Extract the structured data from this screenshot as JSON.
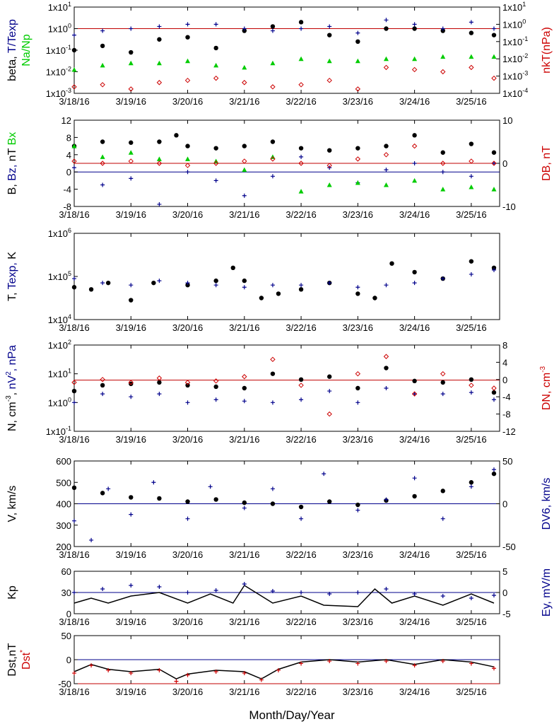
{
  "xlabel": "Month/Day/Year",
  "x_ticks": [
    "3/18/16",
    "3/19/16",
    "3/20/16",
    "3/21/16",
    "3/22/16",
    "3/23/16",
    "3/24/16",
    "3/25/16"
  ],
  "colors": {
    "black": "#000000",
    "blue": "#00008b",
    "red": "#cc0000",
    "green": "#00cc00",
    "ref_red": "#c00000",
    "ref_blue": "#00008b"
  },
  "chart_data": [
    {
      "type": "scatter",
      "scale": "log",
      "ylabel_parts": [
        {
          "text": "beta, ",
          "color": "black"
        },
        {
          "text": "T/Texp",
          "color": "blue"
        }
      ],
      "ylabel2_parts": [
        {
          "text": "nkT(nPa)",
          "color": "red"
        }
      ],
      "ylabel3_parts": [
        {
          "text": "Na/Np",
          "color": "green"
        }
      ],
      "left_ticks": [
        "1x10-3",
        "1x10-2",
        "1x10-1",
        "1x100",
        "1x101"
      ],
      "right_ticks": [
        "1x10-4",
        "1x10-3",
        "1x10-2",
        "1x10-1",
        "1x100",
        "1x101"
      ],
      "ylim": [
        -3,
        1
      ],
      "ref_lines": [
        {
          "y": 0,
          "color": "ref_red"
        }
      ],
      "series": [
        {
          "color": "black",
          "marker": "dot",
          "x": [
            0.0,
            0.5,
            1.0,
            1.5,
            2.0,
            2.5,
            3.0,
            3.5,
            4.0,
            4.5,
            5.0,
            5.5,
            6.0,
            6.5,
            7.0,
            7.4
          ],
          "y": [
            -1.0,
            -0.8,
            -1.1,
            -0.5,
            -0.4,
            -0.9,
            -0.1,
            0.1,
            0.3,
            -0.3,
            -0.6,
            0.0,
            0.0,
            -0.1,
            -0.2,
            -0.3
          ]
        },
        {
          "color": "blue",
          "marker": "plus",
          "x": [
            0.0,
            0.5,
            1.0,
            1.5,
            2.0,
            2.5,
            3.0,
            3.5,
            4.0,
            4.5,
            5.0,
            5.5,
            6.0,
            6.5,
            7.0,
            7.4
          ],
          "y": [
            -0.3,
            -0.1,
            0.0,
            0.1,
            0.2,
            0.2,
            0.0,
            -0.1,
            0.0,
            0.1,
            -0.2,
            0.4,
            0.2,
            0.0,
            0.3,
            0.0
          ]
        },
        {
          "color": "red",
          "marker": "diamond",
          "x": [
            0.0,
            0.5,
            1.0,
            1.5,
            2.0,
            2.5,
            3.0,
            3.5,
            4.0,
            4.5,
            5.0,
            5.5,
            6.0,
            6.5,
            7.0,
            7.4
          ],
          "y": [
            -2.7,
            -2.6,
            -2.8,
            -2.5,
            -2.4,
            -2.3,
            -2.5,
            -2.7,
            -2.6,
            -2.4,
            -2.8,
            -1.8,
            -1.9,
            -2.0,
            -1.8,
            -2.3
          ]
        },
        {
          "color": "green",
          "marker": "triangle",
          "x": [
            0.0,
            0.5,
            1.0,
            1.5,
            2.0,
            2.5,
            3.0,
            3.5,
            4.0,
            4.5,
            5.0,
            5.5,
            6.0,
            6.5,
            7.0,
            7.4
          ],
          "y": [
            -1.9,
            -1.7,
            -1.6,
            -1.6,
            -1.5,
            -1.7,
            -1.8,
            -1.6,
            -1.4,
            -1.5,
            -1.5,
            -1.4,
            -1.4,
            -1.3,
            -1.3,
            -1.3
          ]
        }
      ]
    },
    {
      "type": "scatter",
      "scale": "linear",
      "ylabel_parts": [
        {
          "text": "B, ",
          "color": "black"
        },
        {
          "text": "Bz, ",
          "color": "blue"
        },
        {
          "text": "nT ",
          "color": "black"
        },
        {
          "text": "Bx",
          "color": "green"
        }
      ],
      "ylabel2_parts": [
        {
          "text": "DB, nT",
          "color": "red"
        }
      ],
      "left_ticks": [
        "-8",
        "-4",
        "0",
        "4",
        "8",
        "12"
      ],
      "right_ticks": [
        "-10",
        "0",
        "10"
      ],
      "ylim": [
        -8,
        12
      ],
      "ref_lines": [
        {
          "y": 0,
          "color": "ref_blue"
        },
        {
          "y": 2,
          "color": "ref_red"
        }
      ],
      "series": [
        {
          "color": "black",
          "marker": "dot",
          "x": [
            0.0,
            0.5,
            1.0,
            1.5,
            1.8,
            2.0,
            2.5,
            3.0,
            3.5,
            4.0,
            4.5,
            5.0,
            5.5,
            6.0,
            6.5,
            7.0,
            7.4
          ],
          "y": [
            6.0,
            7.0,
            6.8,
            7.0,
            8.5,
            6.0,
            5.5,
            6.0,
            7.0,
            5.5,
            5.0,
            5.5,
            6.0,
            8.5,
            4.5,
            6.5,
            4.5
          ]
        },
        {
          "color": "blue",
          "marker": "plus",
          "x": [
            0.0,
            0.5,
            1.0,
            1.5,
            2.0,
            2.5,
            3.0,
            3.5,
            4.0,
            4.5,
            5.0,
            5.5,
            6.0,
            6.5,
            7.0,
            7.4
          ],
          "y": [
            1.0,
            -3.0,
            -1.5,
            -7.5,
            0.0,
            -2.0,
            -5.5,
            -1.0,
            3.5,
            1.0,
            -2.5,
            0.5,
            2.0,
            0.0,
            -1.0,
            2.0
          ]
        },
        {
          "color": "green",
          "marker": "triangle",
          "x": [
            0.0,
            0.5,
            1.0,
            1.5,
            2.0,
            2.5,
            3.0,
            3.5,
            4.0,
            4.5,
            5.0,
            5.5,
            6.0,
            6.5,
            7.0,
            7.4
          ],
          "y": [
            6.0,
            3.5,
            4.5,
            3.0,
            3.0,
            2.5,
            0.5,
            3.5,
            -4.5,
            -3.0,
            -2.5,
            -3.0,
            -2.0,
            -4.0,
            -3.5,
            -4.0
          ]
        },
        {
          "color": "red",
          "marker": "diamond",
          "x": [
            0.0,
            0.5,
            1.0,
            1.5,
            2.0,
            2.5,
            3.0,
            3.5,
            4.0,
            4.5,
            5.0,
            5.5,
            6.0,
            6.5,
            7.0,
            7.4
          ],
          "y": [
            2.5,
            2.0,
            2.5,
            2.0,
            1.5,
            2.0,
            2.5,
            3.0,
            2.0,
            1.5,
            3.0,
            4.0,
            6.0,
            2.0,
            2.5,
            2.0
          ]
        }
      ]
    },
    {
      "type": "scatter",
      "scale": "log",
      "ylabel_parts": [
        {
          "text": "T, ",
          "color": "black"
        },
        {
          "text": "Texp, ",
          "color": "blue"
        },
        {
          "text": "K",
          "color": "black"
        }
      ],
      "left_ticks": [
        "1x104",
        "1x105",
        "1x106"
      ],
      "ylim": [
        4,
        6
      ],
      "ref_lines": [],
      "series": [
        {
          "color": "black",
          "marker": "dot",
          "x": [
            0.0,
            0.3,
            0.6,
            1.0,
            1.4,
            2.0,
            2.5,
            2.8,
            3.0,
            3.3,
            3.6,
            4.0,
            4.5,
            5.0,
            5.3,
            5.6,
            6.0,
            6.5,
            7.0,
            7.4
          ],
          "y": [
            4.75,
            4.7,
            4.85,
            4.45,
            4.85,
            4.8,
            4.9,
            5.2,
            4.9,
            4.5,
            4.6,
            4.7,
            4.85,
            4.6,
            4.5,
            5.3,
            5.1,
            4.95,
            5.35,
            5.2
          ]
        },
        {
          "color": "blue",
          "marker": "plus",
          "x": [
            0.0,
            0.5,
            1.0,
            1.5,
            2.0,
            2.5,
            3.0,
            3.5,
            4.0,
            4.5,
            5.0,
            5.5,
            6.0,
            6.5,
            7.0,
            7.4
          ],
          "y": [
            4.95,
            4.85,
            4.8,
            4.9,
            4.85,
            4.8,
            4.75,
            4.8,
            4.8,
            4.85,
            4.75,
            4.8,
            4.85,
            4.95,
            5.05,
            5.15
          ]
        }
      ]
    },
    {
      "type": "scatter",
      "scale": "log",
      "ylabel_parts": [
        {
          "text": "N, cm",
          "color": "black"
        },
        {
          "text": "-3",
          "color": "black",
          "sup": true
        },
        {
          "text": ", ",
          "color": "black"
        },
        {
          "text": "nV",
          "color": "blue"
        },
        {
          "text": "2",
          "color": "blue",
          "sup": true
        },
        {
          "text": ", nPa",
          "color": "blue"
        }
      ],
      "ylabel2_parts": [
        {
          "text": "DN, cm",
          "color": "red"
        },
        {
          "text": "-3",
          "color": "red",
          "sup": true
        }
      ],
      "left_ticks": [
        "1x10-1",
        "1x100",
        "1x101",
        "1x102"
      ],
      "right_ticks": [
        "-12",
        "-8",
        "-4",
        "0",
        "4",
        "8"
      ],
      "ylim": [
        -1,
        2
      ],
      "ref_lines": [
        {
          "y": 0.78,
          "color": "ref_red"
        }
      ],
      "series": [
        {
          "color": "black",
          "marker": "dot",
          "x": [
            0.0,
            0.5,
            1.0,
            1.5,
            2.0,
            2.5,
            3.0,
            3.5,
            4.0,
            4.5,
            5.0,
            5.5,
            6.0,
            6.5,
            7.0,
            7.4
          ],
          "y": [
            0.4,
            0.6,
            0.65,
            0.7,
            0.6,
            0.55,
            0.5,
            1.0,
            0.8,
            0.9,
            0.5,
            1.2,
            0.75,
            0.7,
            0.8,
            0.35
          ]
        },
        {
          "color": "blue",
          "marker": "plus",
          "x": [
            0.0,
            0.5,
            1.0,
            1.5,
            2.0,
            2.5,
            3.0,
            3.5,
            4.0,
            4.5,
            5.0,
            5.5,
            6.0,
            6.5,
            7.0,
            7.4
          ],
          "y": [
            0.0,
            0.3,
            0.2,
            0.3,
            0.0,
            0.1,
            0.05,
            0.0,
            0.1,
            0.4,
            0.0,
            0.5,
            0.3,
            0.3,
            0.35,
            0.1
          ]
        },
        {
          "color": "red",
          "marker": "diamond",
          "x": [
            0.0,
            0.5,
            1.0,
            1.5,
            2.0,
            2.5,
            3.0,
            3.5,
            4.0,
            4.5,
            5.0,
            5.5,
            6.0,
            6.5,
            7.0,
            7.4
          ],
          "y": [
            0.7,
            0.8,
            0.7,
            0.85,
            0.7,
            0.75,
            0.9,
            1.5,
            0.6,
            -0.4,
            1.0,
            1.6,
            0.3,
            1.0,
            0.6,
            0.5
          ]
        }
      ]
    },
    {
      "type": "scatter",
      "scale": "linear",
      "ylabel_parts": [
        {
          "text": "V, km/s",
          "color": "black"
        }
      ],
      "ylabel2_parts": [
        {
          "text": "DV6, km/s",
          "color": "blue"
        }
      ],
      "left_ticks": [
        "200",
        "300",
        "400",
        "500",
        "600"
      ],
      "right_ticks": [
        "-50",
        "0",
        "50"
      ],
      "ylim": [
        200,
        600
      ],
      "ref_lines": [
        {
          "y": 400,
          "color": "ref_blue"
        }
      ],
      "series": [
        {
          "color": "black",
          "marker": "dot",
          "x": [
            0.0,
            0.5,
            1.0,
            1.5,
            2.0,
            2.5,
            3.0,
            3.5,
            4.0,
            4.5,
            5.0,
            5.5,
            6.0,
            6.5,
            7.0,
            7.4
          ],
          "y": [
            475,
            450,
            430,
            425,
            410,
            420,
            405,
            400,
            385,
            410,
            395,
            415,
            435,
            460,
            500,
            540
          ]
        },
        {
          "color": "blue",
          "marker": "plus",
          "x": [
            0.0,
            0.3,
            0.6,
            1.0,
            1.4,
            2.0,
            2.4,
            3.0,
            3.5,
            4.0,
            4.4,
            5.0,
            5.5,
            6.0,
            6.5,
            7.0,
            7.4
          ],
          "y": [
            320,
            230,
            470,
            350,
            500,
            330,
            480,
            380,
            470,
            330,
            540,
            370,
            420,
            520,
            330,
            480,
            560
          ]
        }
      ]
    },
    {
      "type": "line",
      "scale": "linear",
      "ylabel_parts": [
        {
          "text": "Kp",
          "color": "black"
        }
      ],
      "ylabel2_parts": [
        {
          "text": "Ey,  mV/m",
          "color": "blue"
        }
      ],
      "left_ticks": [
        "0",
        "30",
        "60"
      ],
      "right_ticks": [
        "-5",
        "0",
        "5"
      ],
      "ylim": [
        0,
        60
      ],
      "ref_lines": [
        {
          "y": 30,
          "color": "ref_blue"
        }
      ],
      "series": [
        {
          "color": "black",
          "marker": "line",
          "x": [
            0.0,
            0.3,
            0.6,
            1.0,
            1.5,
            2.0,
            2.4,
            2.8,
            3.0,
            3.5,
            4.0,
            4.4,
            5.0,
            5.3,
            5.6,
            6.0,
            6.5,
            7.0,
            7.4
          ],
          "y": [
            15,
            22,
            15,
            25,
            30,
            15,
            28,
            15,
            40,
            15,
            25,
            12,
            10,
            35,
            15,
            25,
            12,
            28,
            15
          ]
        },
        {
          "color": "blue",
          "marker": "plus",
          "x": [
            0.0,
            0.5,
            1.0,
            1.5,
            2.0,
            2.5,
            3.0,
            3.5,
            4.0,
            4.5,
            5.0,
            5.5,
            6.0,
            6.5,
            7.0,
            7.4
          ],
          "y": [
            30,
            35,
            40,
            38,
            30,
            33,
            42,
            32,
            30,
            28,
            30,
            35,
            28,
            25,
            22,
            26
          ]
        }
      ]
    },
    {
      "type": "line",
      "scale": "linear",
      "ylabel_parts": [
        {
          "text": "Dst,nT",
          "color": "black"
        }
      ],
      "ylabel3_parts": [
        {
          "text": "Dst",
          "color": "red"
        },
        {
          "text": "*",
          "color": "red",
          "sup": true
        }
      ],
      "left_ticks": [
        "-50",
        "0",
        "50"
      ],
      "ylim": [
        -50,
        50
      ],
      "ref_lines": [
        {
          "y": 0,
          "color": "ref_blue"
        },
        {
          "y": -50,
          "color": "ref_red"
        }
      ],
      "series": [
        {
          "color": "black",
          "marker": "line",
          "x": [
            0.0,
            0.3,
            0.6,
            1.0,
            1.5,
            1.8,
            2.0,
            2.5,
            3.0,
            3.3,
            3.6,
            4.0,
            4.5,
            5.0,
            5.5,
            6.0,
            6.5,
            7.0,
            7.4
          ],
          "y": [
            -25,
            -10,
            -20,
            -25,
            -20,
            -40,
            -30,
            -22,
            -25,
            -40,
            -20,
            -5,
            0,
            -5,
            0,
            -10,
            0,
            -5,
            -15
          ]
        },
        {
          "color": "red",
          "marker": "plus",
          "x": [
            0.0,
            0.3,
            0.6,
            1.0,
            1.5,
            1.8,
            2.0,
            2.5,
            3.0,
            3.3,
            3.6,
            4.0,
            4.5,
            5.0,
            5.5,
            6.0,
            6.5,
            7.0,
            7.4
          ],
          "y": [
            -28,
            -12,
            -22,
            -28,
            -22,
            -45,
            -32,
            -25,
            -28,
            -42,
            -22,
            -8,
            -3,
            -8,
            -3,
            -12,
            -3,
            -8,
            -18
          ]
        }
      ]
    }
  ]
}
